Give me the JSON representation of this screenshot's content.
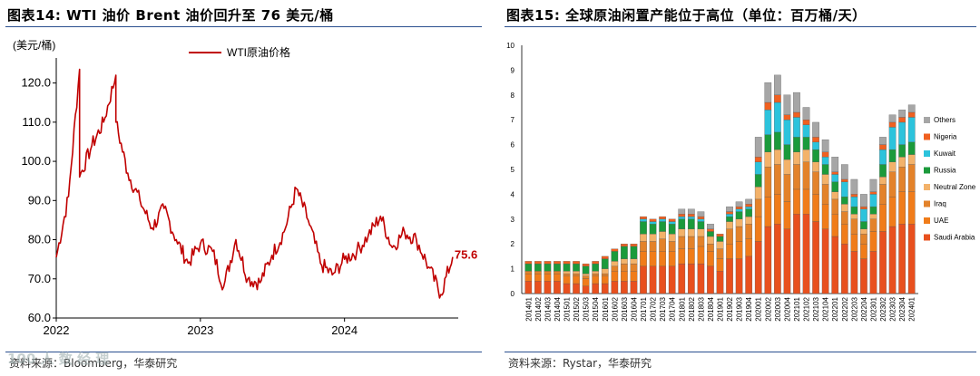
{
  "left": {
    "title": "图表14:  WTI 油价 Brent 油价回升至 76 美元/桶",
    "source": "资料来源：Bloomberg，华泰研究",
    "watermark": "100 人 数 经 理",
    "colors": {
      "line": "#c00000"
    }
  },
  "right": {
    "title": "图表15:  全球原油闲置产能位于高位（单位：百万桶/天）",
    "source": "资料来源：Rystar，华泰研究",
    "colors": {
      "Saudi Arabia": "#e8501e",
      "UAE": "#f07c1a",
      "Iraq": "#e3822a",
      "Neutral Zone": "#f3b26a",
      "Russia": "#1b9a3b",
      "Kuwait": "#2cc3dc",
      "Nigeria": "#f06020",
      "Others": "#a6a6a6"
    }
  },
  "chart_data": [
    {
      "type": "line",
      "title": "",
      "ylabel": "(美元/桶)",
      "xlabel": "",
      "ylim": [
        60,
        125
      ],
      "yticks": [
        "60.0",
        "70.0",
        "80.0",
        "90.0",
        "100.0",
        "110.0",
        "120.0"
      ],
      "xticks": [
        "2022",
        "2023",
        "2024"
      ],
      "grid": false,
      "legend": "top-center",
      "annotation": "75.6",
      "series": [
        {
          "name": "WTI原油价格",
          "x": [
            "2022-01",
            "2022-02",
            "2022-03",
            "2022-03",
            "2022-04",
            "2022-05",
            "2022-06",
            "2022-06",
            "2022-07",
            "2022-08",
            "2022-09",
            "2022-10",
            "2022-11",
            "2022-12",
            "2023-01",
            "2023-02",
            "2023-03",
            "2023-04",
            "2023-05",
            "2023-06",
            "2023-07",
            "2023-08",
            "2023-09",
            "2023-10",
            "2023-11",
            "2023-12",
            "2024-01",
            "2024-02",
            "2024-03",
            "2024-04",
            "2024-05",
            "2024-06",
            "2024-07",
            "2024-08",
            "2024-09",
            "2024-10"
          ],
          "values": [
            75.5,
            91.0,
            123.5,
            96.0,
            104.0,
            110.0,
            122.0,
            110.0,
            97.0,
            90.0,
            83.0,
            88.0,
            80.0,
            74.0,
            79.0,
            77.0,
            68.0,
            80.0,
            70.0,
            69.0,
            76.0,
            82.0,
            93.0,
            85.0,
            74.0,
            71.0,
            75.0,
            77.0,
            81.0,
            86.0,
            78.0,
            82.0,
            80.0,
            73.0,
            66.0,
            75.6
          ]
        }
      ]
    },
    {
      "type": "bar",
      "stacked": true,
      "title": "",
      "ylim": [
        0,
        10
      ],
      "yticks": [
        "0",
        "1",
        "2",
        "3",
        "4",
        "5",
        "6",
        "7",
        "8",
        "9",
        "10"
      ],
      "legend": "right",
      "categories": [
        "201401",
        "201402",
        "201403",
        "201404",
        "201501",
        "201502",
        "201503",
        "201504",
        "201601",
        "201602",
        "201603",
        "201604",
        "201701",
        "201702",
        "201703",
        "201704",
        "201801",
        "201802",
        "201803",
        "201804",
        "201901",
        "201902",
        "201903",
        "201904",
        "202001",
        "202002",
        "202003",
        "202004",
        "202101",
        "202102",
        "202103",
        "202104",
        "202201",
        "202202",
        "202203",
        "202204",
        "202301",
        "202302",
        "202303",
        "202304",
        "202401"
      ],
      "series": [
        {
          "name": "Saudi Arabia",
          "values": [
            0.5,
            0.5,
            0.5,
            0.5,
            0.4,
            0.4,
            0.3,
            0.4,
            0.4,
            0.5,
            0.5,
            0.5,
            1.1,
            1.1,
            1.1,
            1.1,
            1.2,
            1.2,
            1.2,
            1.1,
            0.9,
            1.4,
            1.4,
            1.5,
            2.1,
            2.7,
            2.8,
            2.6,
            3.2,
            3.2,
            2.9,
            2.6,
            2.3,
            2.0,
            1.7,
            1.4,
            1.7,
            2.5,
            2.7,
            2.8,
            2.8
          ]
        },
        {
          "name": "UAE",
          "values": [
            0.3,
            0.3,
            0.3,
            0.3,
            0.3,
            0.3,
            0.3,
            0.3,
            0.3,
            0.4,
            0.4,
            0.4,
            0.6,
            0.6,
            0.6,
            0.6,
            0.6,
            0.6,
            0.7,
            0.6,
            0.5,
            0.6,
            0.7,
            0.7,
            1.0,
            1.2,
            1.2,
            1.1,
            1.0,
            1.0,
            1.1,
            1.0,
            0.9,
            0.8,
            0.7,
            0.6,
            0.8,
            1.1,
            1.2,
            1.3,
            1.3
          ]
        },
        {
          "name": "Iraq",
          "values": [
            0.1,
            0.1,
            0.1,
            0.1,
            0.1,
            0.1,
            0.1,
            0.1,
            0.1,
            0.2,
            0.3,
            0.3,
            0.4,
            0.4,
            0.5,
            0.4,
            0.5,
            0.5,
            0.4,
            0.3,
            0.4,
            0.6,
            0.6,
            0.6,
            0.7,
            1.2,
            1.2,
            1.1,
            1.0,
            1.1,
            0.9,
            0.8,
            0.6,
            0.5,
            0.6,
            0.4,
            0.5,
            0.8,
            1.0,
            1.0,
            1.1
          ]
        },
        {
          "name": "Neutral Zone",
          "values": [
            0.0,
            0.0,
            0.0,
            0.0,
            0.1,
            0.1,
            0.1,
            0.1,
            0.2,
            0.2,
            0.2,
            0.2,
            0.3,
            0.3,
            0.3,
            0.3,
            0.3,
            0.3,
            0.3,
            0.3,
            0.3,
            0.3,
            0.3,
            0.3,
            0.5,
            0.6,
            0.6,
            0.6,
            0.5,
            0.5,
            0.4,
            0.4,
            0.3,
            0.3,
            0.2,
            0.2,
            0.2,
            0.3,
            0.4,
            0.4,
            0.4
          ]
        },
        {
          "name": "Russia",
          "values": [
            0.3,
            0.3,
            0.3,
            0.3,
            0.3,
            0.3,
            0.3,
            0.3,
            0.4,
            0.4,
            0.5,
            0.5,
            0.5,
            0.4,
            0.4,
            0.4,
            0.4,
            0.4,
            0.3,
            0.2,
            0.2,
            0.2,
            0.3,
            0.3,
            0.5,
            0.7,
            0.7,
            0.6,
            0.6,
            0.5,
            0.5,
            0.4,
            0.4,
            0.3,
            0.3,
            0.3,
            0.3,
            0.5,
            0.5,
            0.5,
            0.5
          ]
        },
        {
          "name": "Kuwait",
          "values": [
            0.0,
            0.0,
            0.0,
            0.0,
            0.0,
            0.0,
            0.0,
            0.0,
            0.0,
            0.0,
            0.0,
            0.0,
            0.1,
            0.1,
            0.1,
            0.1,
            0.1,
            0.1,
            0.1,
            0.0,
            0.0,
            0.1,
            0.1,
            0.1,
            0.5,
            1.0,
            1.2,
            1.0,
            0.8,
            0.5,
            0.3,
            0.3,
            0.3,
            0.6,
            0.4,
            0.5,
            0.5,
            0.6,
            0.9,
            0.9,
            1.0
          ]
        },
        {
          "name": "Nigeria",
          "values": [
            0.1,
            0.1,
            0.1,
            0.1,
            0.1,
            0.1,
            0.1,
            0.1,
            0.1,
            0.1,
            0.1,
            0.1,
            0.1,
            0.1,
            0.1,
            0.1,
            0.1,
            0.1,
            0.1,
            0.1,
            0.1,
            0.1,
            0.1,
            0.1,
            0.2,
            0.3,
            0.3,
            0.2,
            0.2,
            0.2,
            0.2,
            0.2,
            0.1,
            0.1,
            0.1,
            0.1,
            0.1,
            0.2,
            0.2,
            0.2,
            0.2
          ]
        },
        {
          "name": "Others",
          "values": [
            0.0,
            0.0,
            0.0,
            0.0,
            0.0,
            0.0,
            0.0,
            0.0,
            0.0,
            0.0,
            0.0,
            0.0,
            0.0,
            0.0,
            0.0,
            0.0,
            0.2,
            0.2,
            0.2,
            0.2,
            0.0,
            0.2,
            0.2,
            0.2,
            0.8,
            0.8,
            0.8,
            0.8,
            0.8,
            0.5,
            0.6,
            0.5,
            0.6,
            0.6,
            0.6,
            0.5,
            0.5,
            0.3,
            0.3,
            0.3,
            0.3
          ]
        }
      ]
    }
  ]
}
